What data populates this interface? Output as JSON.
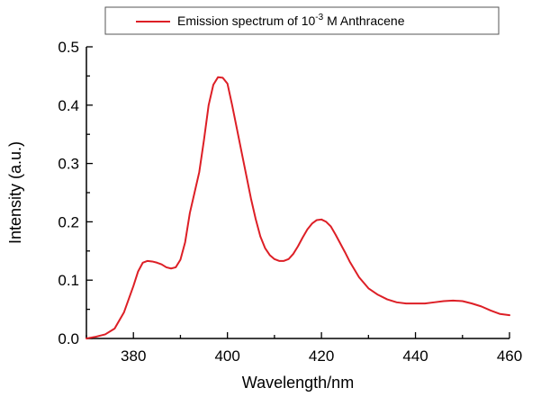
{
  "chart_data": {
    "type": "line",
    "xlabel": "Wavelength/nm",
    "ylabel": "Intensity (a.u.)",
    "xlim": [
      370,
      460
    ],
    "ylim": [
      0.0,
      0.5
    ],
    "x_ticks": [
      380,
      400,
      420,
      440,
      460
    ],
    "x_tick_labels": [
      "380",
      "400",
      "420",
      "440",
      "460"
    ],
    "y_ticks": [
      0.0,
      0.1,
      0.2,
      0.3,
      0.4,
      0.5
    ],
    "y_tick_labels": [
      "0.0",
      "0.1",
      "0.2",
      "0.3",
      "0.4",
      "0.5"
    ],
    "grid": false,
    "legend_position": "top",
    "legend": {
      "text_before": "Emission spectrum of 10",
      "superscript": "-3",
      "text_after": " M Anthracene"
    },
    "series_color": "#dd1f26",
    "series": [
      {
        "name": "Emission spectrum of 10-3 M Anthracene",
        "x": [
          370,
          372,
          374,
          376,
          378,
          380,
          381,
          382,
          383,
          384,
          385,
          386,
          387,
          388,
          389,
          390,
          391,
          392,
          393,
          394,
          395,
          396,
          397,
          398,
          399,
          400,
          401,
          402,
          403,
          404,
          405,
          406,
          407,
          408,
          409,
          410,
          411,
          412,
          413,
          414,
          415,
          416,
          417,
          418,
          419,
          420,
          421,
          422,
          423,
          424,
          425,
          426,
          428,
          430,
          432,
          434,
          436,
          438,
          440,
          442,
          444,
          446,
          448,
          450,
          452,
          454,
          456,
          458,
          460
        ],
        "y": [
          0.0,
          0.003,
          0.007,
          0.017,
          0.045,
          0.09,
          0.115,
          0.13,
          0.133,
          0.132,
          0.13,
          0.127,
          0.122,
          0.12,
          0.122,
          0.135,
          0.165,
          0.215,
          0.25,
          0.285,
          0.34,
          0.4,
          0.435,
          0.448,
          0.447,
          0.437,
          0.4,
          0.36,
          0.32,
          0.28,
          0.24,
          0.205,
          0.175,
          0.155,
          0.143,
          0.136,
          0.133,
          0.133,
          0.136,
          0.145,
          0.158,
          0.173,
          0.187,
          0.197,
          0.203,
          0.204,
          0.2,
          0.192,
          0.178,
          0.163,
          0.148,
          0.132,
          0.105,
          0.086,
          0.075,
          0.067,
          0.062,
          0.06,
          0.06,
          0.06,
          0.062,
          0.064,
          0.065,
          0.064,
          0.06,
          0.055,
          0.048,
          0.042,
          0.04
        ]
      }
    ]
  }
}
